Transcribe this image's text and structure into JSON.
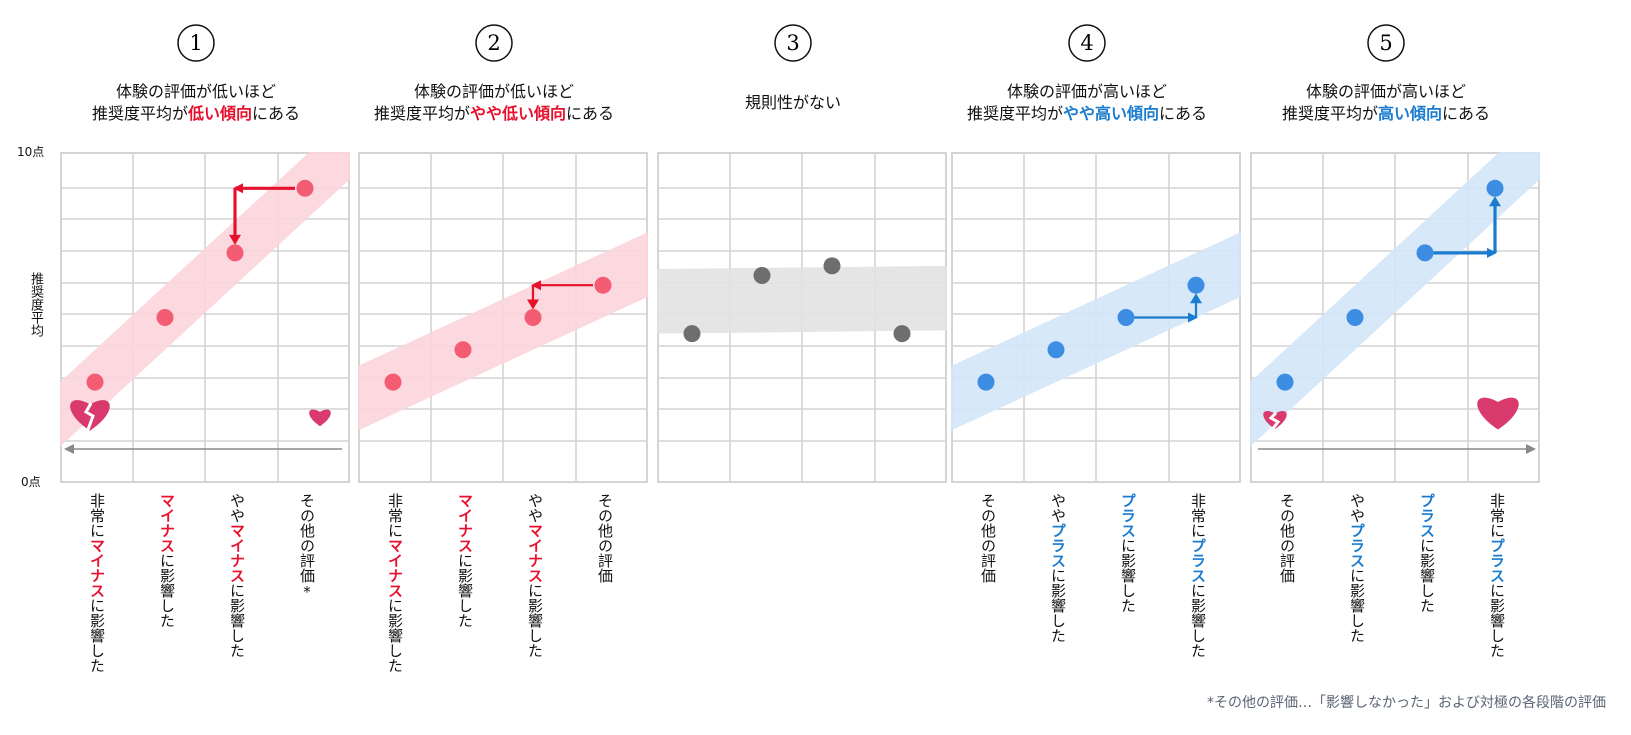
{
  "y_axis": {
    "top_label": "10点",
    "bottom_label": "0点",
    "title": "推奨度平均"
  },
  "colors": {
    "red": "#e8112d",
    "blue": "#1b7ccf",
    "red_point": "#f45c73",
    "blue_point": "#3d8ee3",
    "gray_point": "#6e6e6e",
    "red_band": "#fbd5dc",
    "blue_band": "#d3e6f8",
    "gray_band": "#e2e2e2",
    "heart": "#d93a6e"
  },
  "panels": [
    {
      "number": "①",
      "theme": "red",
      "title_line1": "体験の評価が低いほど",
      "title_line2_pre": "推奨度平均が",
      "title_line2_em": "低い傾向",
      "title_line2_post": "にある",
      "categories": [
        {
          "plain1": "非常に",
          "em": "マイナス",
          "plain2": "に影響した"
        },
        {
          "plain1": "",
          "em": "マイナス",
          "plain2": "に影響した"
        },
        {
          "plain1": "やや",
          "em": "マイナス",
          "plain2": "に影響した"
        },
        {
          "plain1": "その他の評価*",
          "em": "",
          "plain2": ""
        }
      ],
      "values": [
        3.0,
        5.0,
        7.0,
        9.0
      ],
      "arrow": {
        "from": 3,
        "to": 2,
        "style": "down-left",
        "thick": true
      },
      "icons": [
        "broken-heart-icon",
        "heart-icon"
      ],
      "baseline_arrow": "left"
    },
    {
      "number": "②",
      "theme": "red",
      "title_line1": "体験の評価が低いほど",
      "title_line2_pre": "推奨度平均が",
      "title_line2_em": "やや低い傾向",
      "title_line2_post": "にある",
      "categories": [
        {
          "plain1": "非常に",
          "em": "マイナス",
          "plain2": "に影響した"
        },
        {
          "plain1": "",
          "em": "マイナス",
          "plain2": "に影響した"
        },
        {
          "plain1": "やや",
          "em": "マイナス",
          "plain2": "に影響した"
        },
        {
          "plain1": "その他の評価",
          "em": "",
          "plain2": ""
        }
      ],
      "values": [
        3.0,
        4.0,
        5.0,
        6.0
      ],
      "arrow": {
        "from": 3,
        "to": 2,
        "style": "down-left",
        "thick": false
      }
    },
    {
      "number": "③",
      "theme": "gray",
      "title_line1": "規則性がない",
      "title_line2_pre": "",
      "title_line2_em": "",
      "title_line2_post": "",
      "categories": [],
      "values": [
        4.5,
        6.3,
        6.6,
        4.5
      ]
    },
    {
      "number": "④",
      "theme": "blue",
      "title_line1": "体験の評価が高いほど",
      "title_line2_pre": "推奨度平均が",
      "title_line2_em": "やや高い傾向",
      "title_line2_post": "にある",
      "categories": [
        {
          "plain1": "その他の評価",
          "em": "",
          "plain2": ""
        },
        {
          "plain1": "やや",
          "em": "プラス",
          "plain2": "に影響した"
        },
        {
          "plain1": "",
          "em": "プラス",
          "plain2": "に影響した"
        },
        {
          "plain1": "非常に",
          "em": "プラス",
          "plain2": "に影響した"
        }
      ],
      "values": [
        3.0,
        4.0,
        5.0,
        6.0
      ],
      "arrow": {
        "from": 2,
        "to": 3,
        "style": "right-up",
        "thick": false
      }
    },
    {
      "number": "⑤",
      "theme": "blue",
      "title_line1": "体験の評価が高いほど",
      "title_line2_pre": "推奨度平均が",
      "title_line2_em": "高い傾向",
      "title_line2_post": "にある",
      "categories": [
        {
          "plain1": "その他の評価",
          "em": "",
          "plain2": ""
        },
        {
          "plain1": "やや",
          "em": "プラス",
          "plain2": "に影響した"
        },
        {
          "plain1": "",
          "em": "プラス",
          "plain2": "に影響した"
        },
        {
          "plain1": "非常に",
          "em": "プラス",
          "plain2": "に影響した"
        }
      ],
      "values": [
        3.0,
        5.0,
        7.0,
        9.0
      ],
      "arrow": {
        "from": 2,
        "to": 3,
        "style": "right-up",
        "thick": true
      },
      "icons": [
        "broken-heart-icon",
        "heart-icon"
      ],
      "baseline_arrow": "right"
    }
  ],
  "footnote": "*その他の評価…「影響しなかった」および対極の各段階の評価"
}
